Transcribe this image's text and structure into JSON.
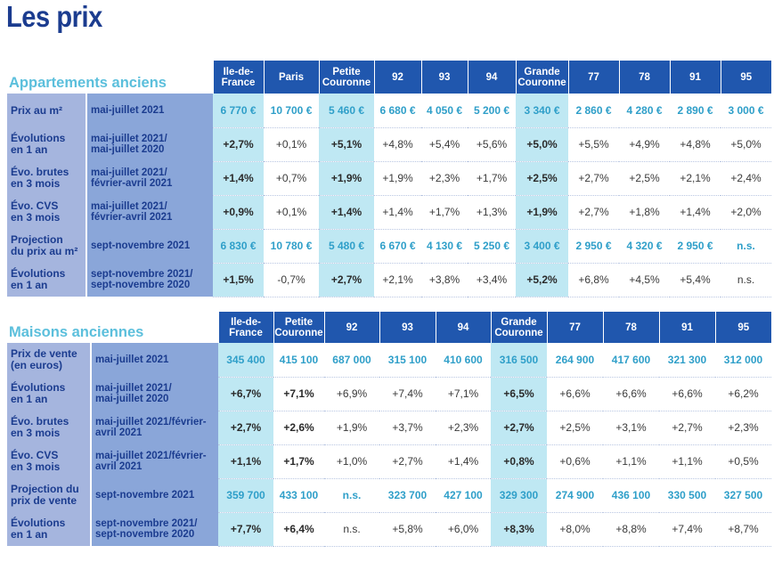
{
  "title": "Les prix",
  "appartements": {
    "section_title": "Appartements anciens",
    "columns": [
      {
        "line1": "Ile-de-",
        "line2": "France"
      },
      {
        "line1": "Paris",
        "line2": ""
      },
      {
        "line1": "Petite",
        "line2": "Couronne"
      },
      {
        "line1": "92",
        "line2": ""
      },
      {
        "line1": "93",
        "line2": ""
      },
      {
        "line1": "94",
        "line2": ""
      },
      {
        "line1": "Grande",
        "line2": "Couronne"
      },
      {
        "line1": "77",
        "line2": ""
      },
      {
        "line1": "78",
        "line2": ""
      },
      {
        "line1": "91",
        "line2": ""
      },
      {
        "line1": "95",
        "line2": ""
      }
    ],
    "rows": [
      {
        "label1": "Prix au m²",
        "label2": "",
        "period1": "mai-juillet 2021",
        "period2": "",
        "values": [
          "6 770 €",
          "10 700 €",
          "5 460 €",
          "6 680 €",
          "4 050 €",
          "5 200 €",
          "3 340 €",
          "2 860 €",
          "4 280 €",
          "2 890 €",
          "3 000 €"
        ]
      },
      {
        "label1": "Évolutions",
        "label2": "en 1 an",
        "period1": "mai-juillet 2021/",
        "period2": "mai-juillet 2020",
        "values": [
          "+2,7%",
          "+0,1%",
          "+5,1%",
          "+4,8%",
          "+5,4%",
          "+5,6%",
          "+5,0%",
          "+5,5%",
          "+4,9%",
          "+4,8%",
          "+5,0%"
        ]
      },
      {
        "label1": "Évo. brutes",
        "label2": "en 3 mois",
        "period1": "mai-juillet 2021/",
        "period2": "février-avril 2021",
        "values": [
          "+1,4%",
          "+0,7%",
          "+1,9%",
          "+1,9%",
          "+2,3%",
          "+1,7%",
          "+2,5%",
          "+2,7%",
          "+2,5%",
          "+2,1%",
          "+2,4%"
        ]
      },
      {
        "label1": "Évo. CVS",
        "label2": "en 3 mois",
        "period1": "mai-juillet 2021/",
        "period2": "février-avril 2021",
        "values": [
          "+0,9%",
          "+0,1%",
          "+1,4%",
          "+1,4%",
          "+1,7%",
          "+1,3%",
          "+1,9%",
          "+2,7%",
          "+1,8%",
          "+1,4%",
          "+2,0%"
        ]
      },
      {
        "label1": "Projection",
        "label2": "du prix au m²",
        "period1": "sept-novembre 2021",
        "period2": "",
        "values": [
          "6 830 €",
          "10 780 €",
          "5 480 €",
          "6 670 €",
          "4 130 €",
          "5 250 €",
          "3 400 €",
          "2 950 €",
          "4 320 €",
          "2 950 €",
          "n.s."
        ]
      },
      {
        "label1": "Évolutions",
        "label2": "en 1 an",
        "period1": "sept-novembre 2021/",
        "period2": "sept-novembre 2020",
        "values": [
          "+1,5%",
          "-0,7%",
          "+2,7%",
          "+2,1%",
          "+3,8%",
          "+3,4%",
          "+5,2%",
          "+6,8%",
          "+4,5%",
          "+5,4%",
          "n.s."
        ]
      }
    ]
  },
  "maisons": {
    "section_title": "Maisons anciennes",
    "columns": [
      {
        "line1": "Ile-de-",
        "line2": "France"
      },
      {
        "line1": "Petite",
        "line2": "Couronne"
      },
      {
        "line1": "92",
        "line2": ""
      },
      {
        "line1": "93",
        "line2": ""
      },
      {
        "line1": "94",
        "line2": ""
      },
      {
        "line1": "Grande",
        "line2": "Couronne"
      },
      {
        "line1": "77",
        "line2": ""
      },
      {
        "line1": "78",
        "line2": ""
      },
      {
        "line1": "91",
        "line2": ""
      },
      {
        "line1": "95",
        "line2": ""
      }
    ],
    "rows": [
      {
        "label1": "Prix de vente",
        "label2": "(en euros)",
        "period1": "mai-juillet 2021",
        "period2": "",
        "values": [
          "345 400",
          "415 100",
          "687 000",
          "315 100",
          "410 600",
          "316 500",
          "264 900",
          "417 600",
          "321 300",
          "312 000"
        ]
      },
      {
        "label1": "Évolutions",
        "label2": "en 1 an",
        "period1": "mai-juillet 2021/",
        "period2": "mai-juillet 2020",
        "values": [
          "+6,7%",
          "+7,1%",
          "+6,9%",
          "+7,4%",
          "+7,1%",
          "+6,5%",
          "+6,6%",
          "+6,6%",
          "+6,6%",
          "+6,2%"
        ]
      },
      {
        "label1": "Évo. brutes",
        "label2": "en 3 mois",
        "period1": "mai-juillet 2021/février-",
        "period2": "avril 2021",
        "values": [
          "+2,7%",
          "+2,6%",
          "+1,9%",
          "+3,7%",
          "+2,3%",
          "+2,7%",
          "+2,5%",
          "+3,1%",
          "+2,7%",
          "+2,3%"
        ]
      },
      {
        "label1": "Évo. CVS",
        "label2": "en 3 mois",
        "period1": "mai-juillet 2021/février-",
        "period2": "avril 2021",
        "values": [
          "+1,1%",
          "+1,7%",
          "+1,0%",
          "+2,7%",
          "+1,4%",
          "+0,8%",
          "+0,6%",
          "+1,1%",
          "+1,1%",
          "+0,5%"
        ]
      },
      {
        "label1": "Projection du",
        "label2": "prix de vente",
        "period1": "sept-novembre 2021",
        "period2": "",
        "values": [
          "359 700",
          "433 100",
          "n.s.",
          "323 700",
          "427 100",
          "329 300",
          "274 900",
          "436 100",
          "330 500",
          "327 500"
        ]
      },
      {
        "label1": "Évolutions",
        "label2": "en 1 an",
        "period1": "sept-novembre 2021/",
        "period2": "sept-novembre 2020",
        "values": [
          "+7,7%",
          "+6,4%",
          "n.s.",
          "+5,8%",
          "+6,0%",
          "+8,3%",
          "+8,0%",
          "+8,8%",
          "+7,4%",
          "+8,7%"
        ]
      }
    ]
  }
}
